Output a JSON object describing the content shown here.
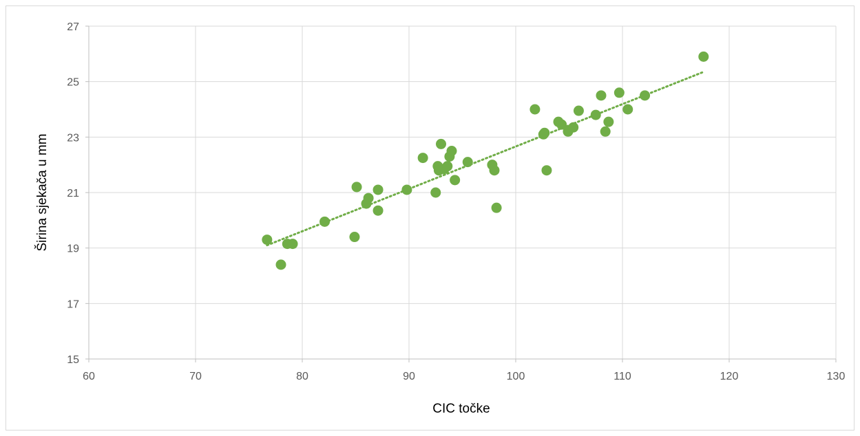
{
  "chart_data": {
    "type": "scatter",
    "xlabel": "CIC točke",
    "ylabel": "Širina sjekača u mm",
    "xlim": [
      60,
      130
    ],
    "ylim": [
      15,
      27
    ],
    "x_ticks": [
      60,
      70,
      80,
      90,
      100,
      110,
      120,
      130
    ],
    "y_ticks": [
      15,
      17,
      19,
      21,
      23,
      25,
      27
    ],
    "grid": true,
    "legend": "none",
    "marker_color": "#70ad47",
    "trendline": {
      "type": "linear",
      "style": "dotted",
      "color": "#70ad47",
      "x_start": 76.7,
      "y_start": 19.1,
      "x_end": 117.6,
      "y_end": 25.35
    },
    "series": [
      {
        "points": [
          [
            76.7,
            19.3
          ],
          [
            78,
            18.4
          ],
          [
            78.6,
            19.15
          ],
          [
            79.1,
            19.15
          ],
          [
            82.1,
            19.95
          ],
          [
            84.9,
            19.4
          ],
          [
            85.1,
            21.2
          ],
          [
            86,
            20.6
          ],
          [
            86.2,
            20.8
          ],
          [
            87.1,
            21.1
          ],
          [
            87.1,
            20.35
          ],
          [
            89.8,
            21.1
          ],
          [
            91.3,
            22.25
          ],
          [
            92.5,
            21
          ],
          [
            92.7,
            21.95
          ],
          [
            92.8,
            21.8
          ],
          [
            93,
            22.75
          ],
          [
            93.3,
            21.85
          ],
          [
            93.6,
            21.95
          ],
          [
            93.8,
            22.3
          ],
          [
            94,
            22.5
          ],
          [
            94.3,
            21.45
          ],
          [
            95.5,
            22.1
          ],
          [
            97.8,
            22
          ],
          [
            98,
            21.8
          ],
          [
            98.2,
            20.45
          ],
          [
            101.8,
            24
          ],
          [
            102.6,
            23.1
          ],
          [
            102.7,
            23.15
          ],
          [
            102.9,
            21.8
          ],
          [
            104,
            23.55
          ],
          [
            104.3,
            23.45
          ],
          [
            104.9,
            23.2
          ],
          [
            105.4,
            23.35
          ],
          [
            105.9,
            23.95
          ],
          [
            107.5,
            23.8
          ],
          [
            108,
            24.5
          ],
          [
            108.4,
            23.2
          ],
          [
            108.7,
            23.55
          ],
          [
            109.7,
            24.6
          ],
          [
            110.5,
            24
          ],
          [
            112.1,
            24.5
          ],
          [
            117.6,
            25.9
          ]
        ]
      }
    ]
  }
}
